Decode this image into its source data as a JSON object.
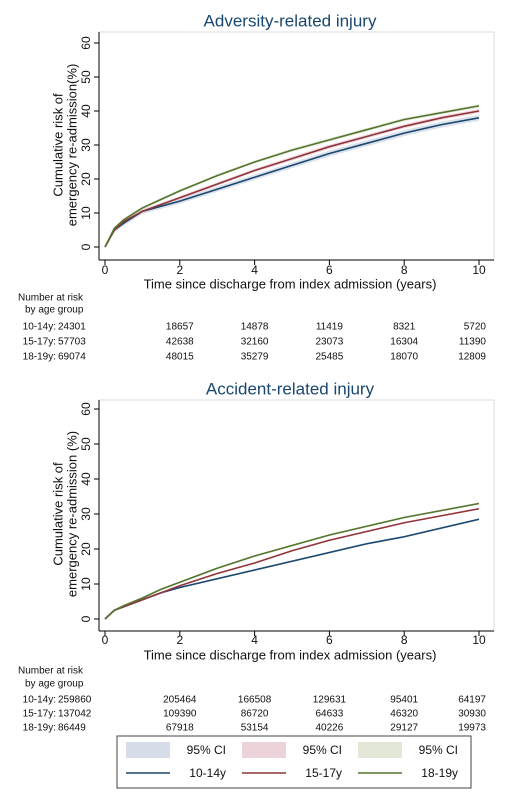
{
  "chart_data": [
    {
      "type": "line",
      "title": "Adversity-related injury",
      "ylabel": [
        "Cumulative risk of",
        "emergency re-admission(%)"
      ],
      "xlabel": "Time since discharge from index admission (years)",
      "x": [
        0,
        0.25,
        0.5,
        1,
        1.5,
        2,
        3,
        4,
        5,
        6,
        7,
        8,
        9,
        10
      ],
      "xlim": [
        0,
        10
      ],
      "xticks": [
        0,
        2,
        4,
        6,
        8,
        10
      ],
      "ylim": [
        0,
        60
      ],
      "yticks": [
        0,
        10,
        20,
        30,
        40,
        50,
        60
      ],
      "series": [
        {
          "color": "#1a476f",
          "ci_color": "#d6dde8",
          "values": [
            0,
            5,
            7,
            10.5,
            12,
            13.5,
            17,
            20.5,
            24,
            27.5,
            30.5,
            33.5,
            36,
            38
          ],
          "ci_lower": [
            0,
            4.3,
            6.3,
            9.7,
            11.2,
            12.7,
            16.2,
            19.7,
            23.2,
            26.6,
            29.6,
            32.6,
            35.1,
            37.1
          ],
          "ci_upper": [
            0,
            5.7,
            7.7,
            11.3,
            12.8,
            14.3,
            17.8,
            21.3,
            24.8,
            28.4,
            31.4,
            34.4,
            36.9,
            38.9
          ]
        },
        {
          "color": "#90353b",
          "ci_color": "#ecd3d9",
          "values": [
            0,
            5,
            7.5,
            10.5,
            12.5,
            14.5,
            18.5,
            22.5,
            26,
            29.5,
            32.5,
            35.5,
            38,
            40
          ],
          "ci_lower": [
            0,
            4.5,
            7,
            10,
            12,
            14,
            18,
            22,
            25.4,
            28.9,
            31.9,
            34.9,
            37.4,
            39.4
          ],
          "ci_upper": [
            0,
            5.5,
            8,
            11,
            13,
            15,
            19,
            23,
            26.6,
            30.1,
            33.1,
            36.1,
            38.6,
            40.6
          ]
        },
        {
          "color": "#55752f",
          "ci_color": "#e2e7d8",
          "values": [
            0,
            5.5,
            8,
            11.5,
            14,
            16.5,
            21,
            25,
            28.5,
            31.5,
            34.5,
            37.5,
            39.5,
            41.5
          ],
          "ci_lower": [
            0,
            5.1,
            7.6,
            11.1,
            13.6,
            16.1,
            20.6,
            24.6,
            28,
            31,
            34,
            37,
            39,
            41
          ],
          "ci_upper": [
            0,
            5.9,
            8.4,
            11.9,
            14.4,
            16.9,
            21.4,
            25.4,
            29,
            32,
            35,
            38,
            40,
            42
          ]
        }
      ],
      "risk_table": {
        "heading": [
          "Number at risk",
          "by age group"
        ],
        "rows": [
          {
            "label": "10-14y:",
            "values": [
              24301,
              18657,
              14878,
              11419,
              8321,
              5720
            ]
          },
          {
            "label": "15-17y:",
            "values": [
              57703,
              42638,
              32160,
              23073,
              16304,
              11390
            ]
          },
          {
            "label": "18-19y:",
            "values": [
              69074,
              48015,
              35279,
              25485,
              18070,
              12809
            ]
          }
        ]
      }
    },
    {
      "type": "line",
      "title": "Accident-related injury",
      "ylabel": [
        "Cumulative risk of",
        "emergency re-admission (%)"
      ],
      "xlabel": "Time since discharge from index admission (years)",
      "x": [
        0,
        0.25,
        0.5,
        1,
        1.5,
        2,
        3,
        4,
        5,
        6,
        7,
        8,
        9,
        10
      ],
      "xlim": [
        0,
        10
      ],
      "xticks": [
        0,
        2,
        4,
        6,
        8,
        10
      ],
      "ylim": [
        0,
        60
      ],
      "yticks": [
        0,
        10,
        20,
        30,
        40,
        50,
        60
      ],
      "series": [
        {
          "name": "10-14y",
          "ci_name": "95% CI",
          "color": "#1a476f",
          "ci_color": "#d6dde8",
          "values": [
            0,
            2.5,
            3.5,
            5.5,
            7.5,
            9,
            11.5,
            14,
            16.5,
            19,
            21.5,
            23.5,
            26,
            28.5
          ],
          "ci_lower": [
            0,
            2.2,
            3.2,
            5.2,
            7.2,
            8.7,
            11.2,
            13.7,
            16.2,
            18.7,
            21.2,
            23.2,
            25.7,
            28.2
          ],
          "ci_upper": [
            0,
            2.8,
            3.8,
            5.8,
            7.8,
            9.3,
            11.8,
            14.3,
            16.8,
            19.3,
            21.8,
            23.8,
            26.3,
            28.8
          ]
        },
        {
          "name": "15-17y",
          "ci_name": "95% CI",
          "color": "#90353b",
          "ci_color": "#ecd3d9",
          "values": [
            0,
            2.5,
            3.5,
            5.5,
            7.5,
            9.5,
            13,
            16,
            19.5,
            22.5,
            25,
            27.5,
            29.5,
            31.5
          ],
          "ci_lower": [
            0,
            2.3,
            3.3,
            5.3,
            7.3,
            9.3,
            12.8,
            15.8,
            19.3,
            22.3,
            24.8,
            27.3,
            29.3,
            31.3
          ],
          "ci_upper": [
            0,
            2.7,
            3.7,
            5.7,
            7.7,
            9.7,
            13.2,
            16.2,
            19.7,
            22.7,
            25.2,
            27.7,
            29.7,
            31.7
          ]
        },
        {
          "name": "18-19y",
          "ci_name": "95% CI",
          "color": "#55752f",
          "ci_color": "#e2e7d8",
          "values": [
            0,
            2.5,
            3.8,
            6,
            8.5,
            10.5,
            14.5,
            18,
            21,
            24,
            26.5,
            29,
            31,
            33
          ],
          "ci_lower": [
            0,
            2.2,
            3.5,
            5.7,
            8.2,
            10.2,
            14.2,
            17.7,
            20.7,
            23.7,
            26.2,
            28.7,
            30.7,
            32.7
          ],
          "ci_upper": [
            0,
            2.8,
            4.1,
            6.3,
            8.8,
            10.8,
            14.8,
            18.3,
            21.3,
            24.3,
            26.8,
            29.3,
            31.3,
            33.3
          ]
        }
      ],
      "risk_table": {
        "heading": [
          "Number at risk",
          "by age group"
        ],
        "rows": [
          {
            "label": "10-14y:",
            "values": [
              259860,
              205464,
              166508,
              129631,
              95401,
              64197
            ]
          },
          {
            "label": "15-17y:",
            "values": [
              137042,
              109390,
              86720,
              64633,
              46320,
              30930
            ]
          },
          {
            "label": "18-19y:",
            "values": [
              86449,
              67918,
              53154,
              40226,
              29127,
              19973
            ]
          }
        ]
      }
    }
  ]
}
